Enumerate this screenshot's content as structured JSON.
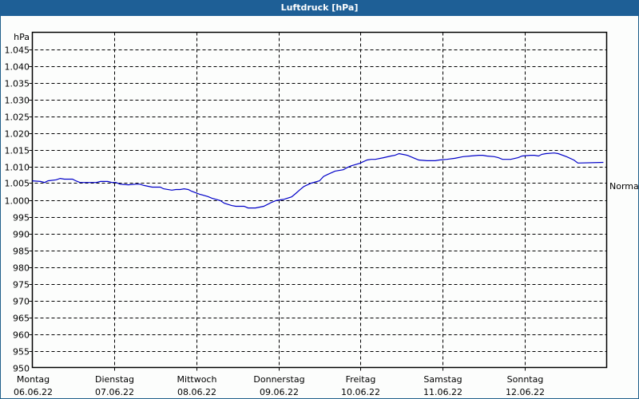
{
  "window": {
    "title": "Luftdruck [hPa]"
  },
  "colors": {
    "titlebar": "#1e5f96",
    "line": "#0000c8",
    "grid": "#000000",
    "background": "#fcfdfc"
  },
  "chart_data": {
    "type": "line",
    "title": "Luftdruck [hPa]",
    "xlabel": "",
    "ylabel": "hPa",
    "ylim": [
      950,
      1050
    ],
    "grid": true,
    "reference_line": {
      "label": "Normal",
      "value": 1005
    },
    "y_ticks": [
      "1.045",
      "1.040",
      "1.035",
      "1.030",
      "1.025",
      "1.020",
      "1.015",
      "1.010",
      "1.005",
      "1.000",
      "995",
      "990",
      "985",
      "980",
      "975",
      "970",
      "965",
      "960",
      "955",
      "950"
    ],
    "x_ticks": [
      {
        "day": "Montag",
        "date": "06.06.22"
      },
      {
        "day": "Dienstag",
        "date": "07.06.22"
      },
      {
        "day": "Mittwoch",
        "date": "08.06.22"
      },
      {
        "day": "Donnerstag",
        "date": "09.06.22"
      },
      {
        "day": "Freitag",
        "date": "10.06.22"
      },
      {
        "day": "Samstag",
        "date": "11.06.22"
      },
      {
        "day": "Sonntag",
        "date": "12.06.22"
      }
    ],
    "series": [
      {
        "name": "Luftdruck",
        "x_days": [
          0.0,
          0.1,
          0.15,
          0.19,
          0.29,
          0.34,
          0.39,
          0.49,
          0.53,
          0.58,
          0.68,
          0.78,
          0.83,
          0.92,
          0.97,
          1.02,
          1.07,
          1.17,
          1.26,
          1.31,
          1.36,
          1.46,
          1.56,
          1.6,
          1.7,
          1.75,
          1.8,
          1.85,
          1.9,
          1.94,
          2.04,
          2.14,
          2.19,
          2.29,
          2.34,
          2.43,
          2.48,
          2.58,
          2.63,
          2.72,
          2.82,
          2.92,
          2.97,
          3.02,
          3.07,
          3.16,
          3.21,
          3.26,
          3.31,
          3.4,
          3.5,
          3.55,
          3.6,
          3.69,
          3.79,
          3.84,
          3.89,
          3.99,
          4.08,
          4.13,
          4.18,
          4.28,
          4.37,
          4.42,
          4.47,
          4.57,
          4.66,
          4.71,
          4.81,
          4.91,
          4.96,
          5.05,
          5.15,
          5.25,
          5.34,
          5.44,
          5.49,
          5.54,
          5.63,
          5.68,
          5.73,
          5.83,
          5.92,
          5.97,
          6.07,
          6.12,
          6.17,
          6.21,
          6.26,
          6.36,
          6.41,
          6.51,
          6.6,
          6.65,
          6.96
        ],
        "values": [
          1005.7,
          1005.5,
          1005.2,
          1005.7,
          1006.0,
          1006.4,
          1006.2,
          1006.2,
          1005.7,
          1005.2,
          1005.2,
          1005.2,
          1005.5,
          1005.5,
          1005.2,
          1005.2,
          1004.7,
          1004.5,
          1004.7,
          1004.7,
          1004.3,
          1003.8,
          1003.8,
          1003.3,
          1002.9,
          1003.1,
          1003.1,
          1003.3,
          1003.1,
          1002.6,
          1001.7,
          1001.0,
          1000.5,
          999.8,
          999.0,
          998.3,
          998.1,
          998.1,
          997.6,
          997.6,
          998.1,
          999.3,
          999.8,
          1000.0,
          1000.2,
          1000.9,
          1001.9,
          1003.0,
          1004.0,
          1005.0,
          1005.7,
          1007.0,
          1007.6,
          1008.6,
          1009.0,
          1009.7,
          1010.2,
          1010.9,
          1011.9,
          1012.1,
          1012.1,
          1012.6,
          1013.1,
          1013.3,
          1013.8,
          1013.3,
          1012.4,
          1011.9,
          1011.7,
          1011.7,
          1011.9,
          1012.1,
          1012.4,
          1012.9,
          1013.1,
          1013.3,
          1013.3,
          1013.1,
          1012.9,
          1012.6,
          1012.1,
          1012.1,
          1012.6,
          1013.1,
          1013.3,
          1013.3,
          1013.1,
          1013.6,
          1013.8,
          1014.0,
          1013.8,
          1012.9,
          1011.9,
          1011.0,
          1011.2
        ]
      }
    ]
  }
}
